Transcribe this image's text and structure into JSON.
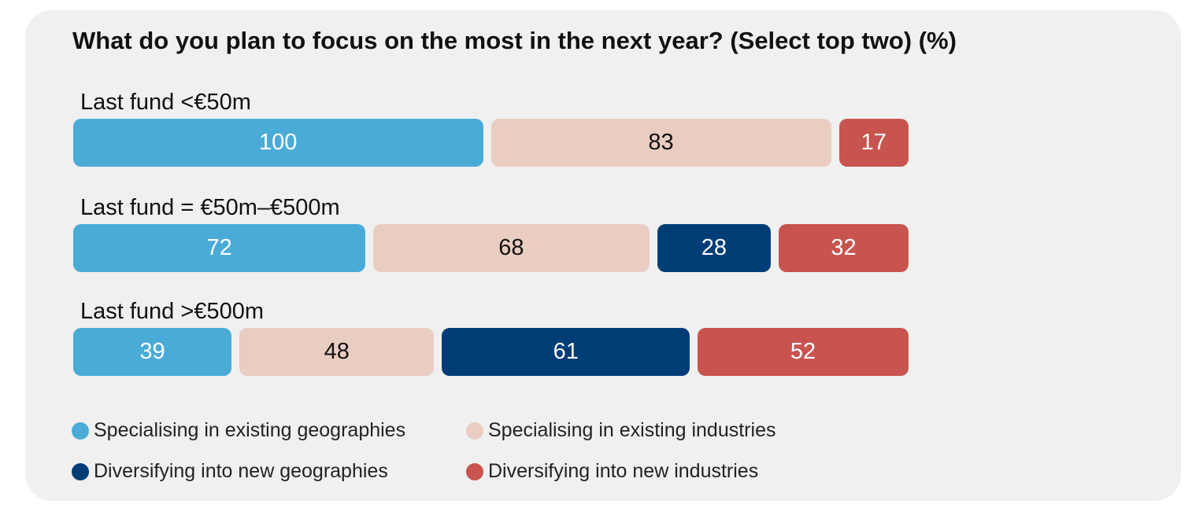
{
  "chart_data": {
    "type": "bar",
    "stacked": true,
    "orientation": "horizontal",
    "title": "What do you plan to focus on the most in the next year? (Select top two) (%)",
    "categories": [
      "Last fund <€50m",
      "Last fund = €50m–€500m",
      "Last fund >€500m"
    ],
    "series": [
      {
        "name": "Specialising in existing geographies",
        "values": [
          100,
          72,
          39
        ],
        "color": "#4babd7",
        "label_color": "#ffffff"
      },
      {
        "name": "Specialising in existing industries",
        "values": [
          83,
          68,
          48
        ],
        "color": "#eacdc1",
        "label_color": "#111111"
      },
      {
        "name": "Diversifying into new geographies",
        "values": [
          0,
          28,
          61
        ],
        "color": "#003d77",
        "label_color": "#ffffff"
      },
      {
        "name": "Diversifying into new industries",
        "values": [
          17,
          32,
          52
        ],
        "color": "#c8544f",
        "label_color": "#ffffff"
      }
    ],
    "legend_position": "bottom",
    "grid": false
  }
}
